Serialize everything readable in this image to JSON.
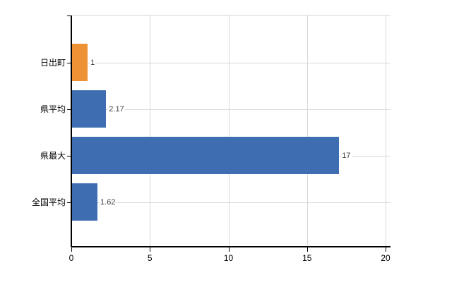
{
  "chart_data": {
    "type": "bar",
    "orientation": "horizontal",
    "title": "",
    "xlabel": "",
    "ylabel": "",
    "categories": [
      "日出町",
      "県平均",
      "県最大",
      "全国平均"
    ],
    "values": [
      1,
      2.17,
      17,
      1.62
    ],
    "value_labels": [
      "1",
      "2.17",
      "17",
      "1.62"
    ],
    "bar_colors": [
      "#ee9235",
      "#3e6eb1",
      "#3e6eb1",
      "#3e6eb1"
    ],
    "xlim": [
      0,
      20
    ],
    "xticks": [
      0,
      5,
      10,
      15,
      20
    ],
    "xtick_labels": [
      "0",
      "5",
      "10",
      "15",
      "20"
    ],
    "grid": "on",
    "legend": "none"
  },
  "colors": {
    "accent_orange": "#ee9235",
    "accent_blue": "#3e6eb1",
    "gridline": "#d9d9d9",
    "axis": "#000000",
    "value_label_text": "#404040",
    "background": "#ffffff"
  }
}
